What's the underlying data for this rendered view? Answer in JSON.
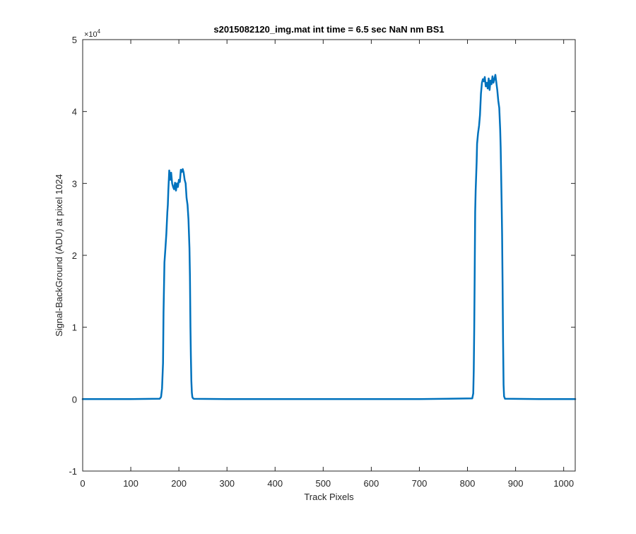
{
  "chart_data": {
    "type": "line",
    "title": "s2015082120_img.mat int time = 6.5 sec  NaN nm BS1",
    "xlabel": "Track Pixels",
    "ylabel": "Signal-BackGround (ADU) at pixel 1024",
    "xlim": [
      0,
      1024
    ],
    "ylim": [
      -10000,
      50000
    ],
    "y_exponent_label": "×10",
    "y_exponent_power": "4",
    "x_ticks": [
      0,
      100,
      200,
      300,
      400,
      500,
      600,
      700,
      800,
      900,
      1000
    ],
    "x_tick_labels": [
      "0",
      "100",
      "200",
      "300",
      "400",
      "500",
      "600",
      "700",
      "800",
      "900",
      "1000"
    ],
    "y_ticks": [
      -10000,
      0,
      10000,
      20000,
      30000,
      40000,
      50000
    ],
    "y_tick_labels": [
      "-1",
      "0",
      "1",
      "2",
      "3",
      "4",
      "5"
    ],
    "grid": false,
    "series": [
      {
        "color": "#0072BD",
        "x": [
          0,
          100,
          160,
          163,
          165,
          167,
          168,
          170,
          172,
          174,
          176,
          177,
          178,
          180,
          182,
          184,
          186,
          188,
          190,
          192,
          194,
          196,
          198,
          200,
          202,
          204,
          206,
          208,
          210,
          212,
          214,
          216,
          218,
          220,
          221,
          222,
          223,
          224,
          225,
          226,
          227,
          228,
          229,
          230,
          232,
          300,
          500,
          700,
          810,
          812,
          813,
          814,
          815,
          816,
          817,
          818,
          819,
          820,
          822,
          824,
          826,
          828,
          830,
          832,
          834,
          836,
          838,
          840,
          842,
          844,
          846,
          848,
          850,
          852,
          854,
          856,
          858,
          860,
          862,
          864,
          866,
          868,
          869,
          870,
          871,
          872,
          873,
          874,
          875,
          876,
          878,
          950,
          1024
        ],
        "values": [
          0,
          0,
          50,
          300,
          1500,
          5000,
          12000,
          19000,
          21000,
          23000,
          26000,
          27000,
          29000,
          31800,
          30500,
          31500,
          30000,
          29500,
          29200,
          30100,
          29000,
          30000,
          29500,
          30500,
          30200,
          31900,
          31600,
          32000,
          31500,
          30500,
          30000,
          28000,
          27000,
          25000,
          23000,
          21000,
          17000,
          10000,
          6000,
          2500,
          900,
          300,
          150,
          80,
          40,
          0,
          0,
          0,
          100,
          800,
          4000,
          10000,
          17000,
          26000,
          29000,
          31000,
          33000,
          35500,
          37000,
          38000,
          39500,
          42500,
          44000,
          44500,
          44200,
          44800,
          43500,
          44000,
          43200,
          44600,
          43000,
          44300,
          43800,
          44900,
          44000,
          44500,
          45100,
          44000,
          43000,
          41500,
          40500,
          37500,
          35000,
          31000,
          27000,
          23000,
          16000,
          8000,
          2000,
          400,
          50,
          0,
          0
        ]
      }
    ]
  }
}
